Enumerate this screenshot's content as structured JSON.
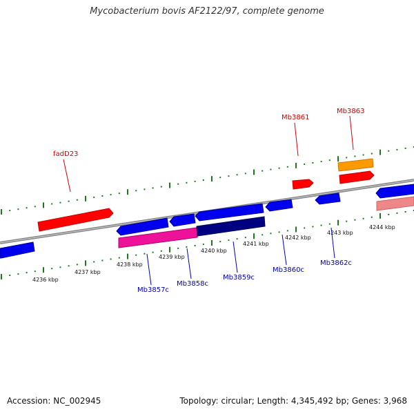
{
  "title": "Mycobacterium bovis AF2122/97, complete genome",
  "footer": {
    "accession": "Accession: NC_002945",
    "summary": "Topology: circular; Length: 4,345,492 bp; Genes: 3,968"
  },
  "ticks": [
    "4236 kbp",
    "4237 kbp",
    "4238 kbp",
    "4239 kbp",
    "4240 kbp",
    "4241 kbp",
    "4242 kbp",
    "4243 kbp",
    "4244 kbp"
  ],
  "forward_labels": [
    {
      "name": "fadD23",
      "color": "#d00000"
    },
    {
      "name": "Mb3861",
      "color": "#d00000"
    },
    {
      "name": "Mb3863",
      "color": "#d00000"
    }
  ],
  "reverse_labels": [
    {
      "name": "Mb3857c",
      "color": "#0000b0"
    },
    {
      "name": "Mb3858c",
      "color": "#0000b0"
    },
    {
      "name": "Mb3859c",
      "color": "#0000b0"
    },
    {
      "name": "Mb3860c",
      "color": "#0000b0"
    },
    {
      "name": "Mb3862c",
      "color": "#0000b0"
    }
  ],
  "colors": {
    "forward_gene": "#ff0000",
    "reverse_gene": "#0000ee",
    "highlight_gene": "#ee1199",
    "dark_gene": "#000080",
    "orange_gene": "#ff9900",
    "pink_gene": "#ee8888",
    "backbone": "#888888",
    "tick": "#1a7a1a"
  }
}
